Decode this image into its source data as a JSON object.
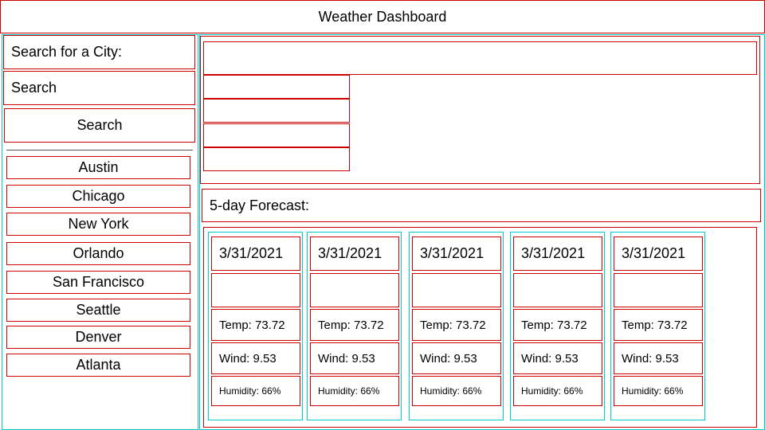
{
  "header": {
    "title": "Weather Dashboard"
  },
  "search": {
    "label": "Search for a City:",
    "input_value": "Search",
    "button_label": "Search"
  },
  "history": [
    "Austin",
    "Chicago",
    "New York",
    "Orlando",
    "San Francisco",
    "Seattle",
    "Denver",
    "Atlanta"
  ],
  "forecast": {
    "title": "5-day Forecast:",
    "days": [
      {
        "date": "3/31/2021",
        "temp": "Temp: 73.72",
        "wind": "Wind: 9.53",
        "humidity": "Humidity: 66%"
      },
      {
        "date": "3/31/2021",
        "temp": "Temp: 73.72",
        "wind": "Wind: 9.53",
        "humidity": "Humidity: 66%"
      },
      {
        "date": "3/31/2021",
        "temp": "Temp: 73.72",
        "wind": "Wind: 9.53",
        "humidity": "Humidity: 66%"
      },
      {
        "date": "3/31/2021",
        "temp": "Temp: 73.72",
        "wind": "Wind: 9.53",
        "humidity": "Humidity: 66%"
      },
      {
        "date": "3/31/2021",
        "temp": "Temp: 73.72",
        "wind": "Wind: 9.53",
        "humidity": "Humidity: 66%"
      }
    ]
  },
  "colors": {
    "outline_primary": "#cc0000",
    "outline_card": "#00cccc",
    "background": "#ffffff"
  }
}
